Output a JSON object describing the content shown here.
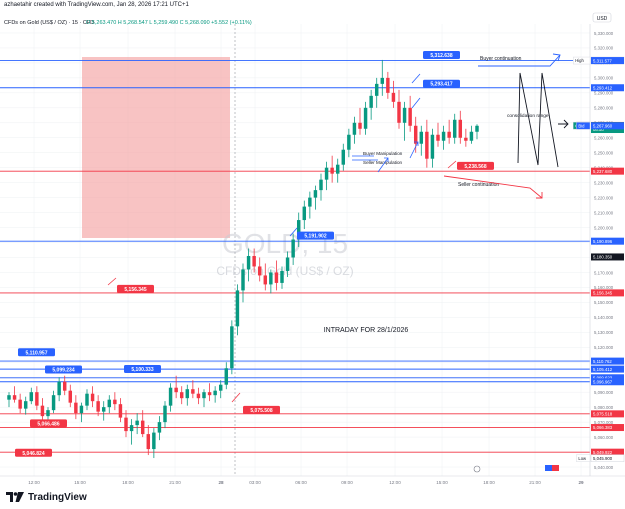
{
  "header": {
    "credit": "azhaetahir created with TradingView.com, Jan 28, 2026 17:21 UTC+1",
    "currency_button": "USD"
  },
  "legend": {
    "symbol": "CFDs on Gold (US$ / OZ) · 15 · CFD",
    "ohlc": "O 5,263.470  H 5,268.547  L 5,259.490  C 5,268.090  +5.552 (+0.11%)"
  },
  "watermark": {
    "big": "GOLD, 15",
    "small": "CFDs on Gold (US$ / OZ)"
  },
  "footer": {
    "brand": "TradingView"
  },
  "colors": {
    "up": "#089981",
    "down": "#f23645",
    "blue_line": "#2962ff",
    "red_line": "#f23645",
    "zone": "#f5a3a3"
  },
  "chart_data": {
    "type": "candlestick",
    "title": "INTRADAY FOR 28/1/2026",
    "ylim": [
      5034,
      5336
    ],
    "x_ticks": [
      "12:00",
      "15:00",
      "18:00",
      "21:00",
      "28",
      "03:00",
      "06:00",
      "09:00",
      "12:00",
      "15:00",
      "18:00",
      "21:00",
      "29"
    ],
    "y_ticks": [
      5040,
      5050,
      5060,
      5070,
      5080,
      5090,
      5100,
      5110,
      5120,
      5130,
      5140,
      5150,
      5160,
      5170,
      5180,
      5190,
      5200,
      5210,
      5220,
      5230,
      5240,
      5250,
      5260,
      5270,
      5280,
      5290,
      5300,
      5310,
      5320,
      5330
    ],
    "level_labels": [
      {
        "text": "5,312.638",
        "color": "blue"
      },
      {
        "text": "5,293.417",
        "color": "blue"
      },
      {
        "text": "5,238.568",
        "color": "red"
      },
      {
        "text": "5,191.902",
        "color": "blue"
      },
      {
        "text": "5,156.345",
        "color": "red"
      },
      {
        "text": "5,110.957",
        "color": "blue"
      },
      {
        "text": "5,099.234",
        "color": "blue"
      },
      {
        "text": "5,100.333",
        "color": "blue"
      },
      {
        "text": "5,075.508",
        "color": "red"
      },
      {
        "text": "5,066.486",
        "color": "red"
      },
      {
        "text": "5,046.824",
        "color": "red"
      }
    ],
    "annotations": [
      "Buyer continuation",
      "consolidation range",
      "Buyer Manipulation",
      "Seller Manipulation",
      "Seller continuation"
    ],
    "price_axis_tags": [
      {
        "text": "High",
        "value": 5311.58,
        "label": "5,311.580",
        "kind": "hl"
      },
      {
        "text": "",
        "value": 5311.577,
        "label": "5,311.577",
        "kind": "blue"
      },
      {
        "text": "",
        "value": 5293.412,
        "label": "5,293.412",
        "kind": "blue"
      },
      {
        "text": "Ask",
        "value": 5268.22,
        "label": "5,268.220",
        "kind": "red"
      },
      {
        "text": "GOLD",
        "value": 5268.09,
        "label": "5,268.090",
        "kind": "green"
      },
      {
        "text": "",
        "value": 5265.5,
        "label": "08:50",
        "kind": "green"
      },
      {
        "text": "Bid",
        "value": 5267.96,
        "label": "5,267.960",
        "kind": "blue"
      },
      {
        "text": "",
        "value": 5237.68,
        "label": "5,237.680",
        "kind": "red"
      },
      {
        "text": "",
        "value": 5190.896,
        "label": "5,190.896",
        "kind": "blue"
      },
      {
        "text": "",
        "value": 5180.35,
        "label": "5,180.350",
        "kind": "dark"
      },
      {
        "text": "",
        "value": 5156.345,
        "label": "5,156.345",
        "kind": "red"
      },
      {
        "text": "",
        "value": 5110.762,
        "label": "5,110.762",
        "kind": "blue"
      },
      {
        "text": "",
        "value": 5105.412,
        "label": "5,105.412",
        "kind": "blue"
      },
      {
        "text": "",
        "value": 5099.623,
        "label": "5,099.623",
        "kind": "blue"
      },
      {
        "text": "",
        "value": 5096.967,
        "label": "5,096.967",
        "kind": "blue"
      },
      {
        "text": "",
        "value": 5075.518,
        "label": "5,075.518",
        "kind": "red"
      },
      {
        "text": "",
        "value": 5066.383,
        "label": "5,066.383",
        "kind": "red"
      },
      {
        "text": "",
        "value": 5049.922,
        "label": "5,049.922",
        "kind": "red"
      },
      {
        "text": "Low",
        "value": 5045.9,
        "label": "5,045.900",
        "kind": "hl"
      }
    ],
    "candles": [
      [
        5085,
        5090,
        5080,
        5088
      ],
      [
        5088,
        5094,
        5083,
        5085
      ],
      [
        5085,
        5089,
        5076,
        5079
      ],
      [
        5079,
        5087,
        5075,
        5084
      ],
      [
        5084,
        5093,
        5082,
        5090
      ],
      [
        5090,
        5094,
        5078,
        5081
      ],
      [
        5081,
        5086,
        5070,
        5074
      ],
      [
        5074,
        5080,
        5068,
        5078
      ],
      [
        5078,
        5091,
        5076,
        5088
      ],
      [
        5088,
        5100,
        5084,
        5097
      ],
      [
        5097,
        5101,
        5088,
        5091
      ],
      [
        5091,
        5095,
        5080,
        5083
      ],
      [
        5083,
        5088,
        5072,
        5076
      ],
      [
        5076,
        5083,
        5070,
        5081
      ],
      [
        5081,
        5092,
        5078,
        5089
      ],
      [
        5089,
        5094,
        5080,
        5084
      ],
      [
        5084,
        5088,
        5074,
        5077
      ],
      [
        5077,
        5084,
        5071,
        5080
      ],
      [
        5080,
        5088,
        5076,
        5085
      ],
      [
        5085,
        5090,
        5078,
        5082
      ],
      [
        5082,
        5086,
        5070,
        5073
      ],
      [
        5073,
        5078,
        5060,
        5064
      ],
      [
        5064,
        5072,
        5055,
        5068
      ],
      [
        5068,
        5076,
        5062,
        5071
      ],
      [
        5071,
        5078,
        5060,
        5062
      ],
      [
        5062,
        5068,
        5048,
        5052
      ],
      [
        5052,
        5066,
        5046,
        5063
      ],
      [
        5063,
        5074,
        5058,
        5070
      ],
      [
        5070,
        5084,
        5066,
        5081
      ],
      [
        5081,
        5096,
        5077,
        5093
      ],
      [
        5093,
        5101,
        5086,
        5090
      ],
      [
        5090,
        5094,
        5082,
        5086
      ],
      [
        5086,
        5095,
        5081,
        5092
      ],
      [
        5092,
        5098,
        5086,
        5089
      ],
      [
        5089,
        5093,
        5082,
        5086
      ],
      [
        5086,
        5092,
        5080,
        5090
      ],
      [
        5090,
        5096,
        5084,
        5088
      ],
      [
        5088,
        5094,
        5083,
        5091
      ],
      [
        5091,
        5098,
        5086,
        5095
      ],
      [
        5095,
        5110,
        5092,
        5106
      ],
      [
        5106,
        5138,
        5102,
        5134
      ],
      [
        5134,
        5162,
        5128,
        5158
      ],
      [
        5158,
        5176,
        5150,
        5172
      ],
      [
        5172,
        5186,
        5164,
        5181
      ],
      [
        5181,
        5186,
        5170,
        5174
      ],
      [
        5174,
        5180,
        5164,
        5168
      ],
      [
        5168,
        5176,
        5158,
        5162
      ],
      [
        5162,
        5172,
        5156,
        5170
      ],
      [
        5170,
        5178,
        5158,
        5163
      ],
      [
        5163,
        5174,
        5159,
        5171
      ],
      [
        5171,
        5184,
        5167,
        5180
      ],
      [
        5180,
        5196,
        5175,
        5192
      ],
      [
        5192,
        5210,
        5187,
        5205
      ],
      [
        5205,
        5218,
        5199,
        5214
      ],
      [
        5214,
        5224,
        5206,
        5220
      ],
      [
        5220,
        5228,
        5212,
        5225
      ],
      [
        5225,
        5236,
        5218,
        5232
      ],
      [
        5232,
        5244,
        5225,
        5240
      ],
      [
        5240,
        5248,
        5230,
        5236
      ],
      [
        5236,
        5246,
        5230,
        5242
      ],
      [
        5242,
        5256,
        5238,
        5252
      ],
      [
        5252,
        5266,
        5247,
        5262
      ],
      [
        5262,
        5274,
        5256,
        5270
      ],
      [
        5270,
        5280,
        5262,
        5266
      ],
      [
        5266,
        5284,
        5262,
        5280
      ],
      [
        5280,
        5292,
        5272,
        5288
      ],
      [
        5288,
        5300,
        5280,
        5296
      ],
      [
        5296,
        5312,
        5288,
        5300
      ],
      [
        5300,
        5304,
        5286,
        5290
      ],
      [
        5290,
        5298,
        5280,
        5284
      ],
      [
        5284,
        5292,
        5266,
        5270
      ],
      [
        5270,
        5284,
        5258,
        5280
      ],
      [
        5280,
        5288,
        5264,
        5268
      ],
      [
        5268,
        5274,
        5250,
        5256
      ],
      [
        5256,
        5268,
        5248,
        5264
      ],
      [
        5264,
        5272,
        5240,
        5246
      ],
      [
        5246,
        5266,
        5240,
        5262
      ],
      [
        5262,
        5270,
        5254,
        5258
      ],
      [
        5258,
        5268,
        5252,
        5264
      ],
      [
        5264,
        5272,
        5256,
        5260
      ],
      [
        5260,
        5276,
        5256,
        5272
      ],
      [
        5272,
        5278,
        5256,
        5260
      ],
      [
        5260,
        5266,
        5254,
        5258
      ],
      [
        5258,
        5268,
        5256,
        5264
      ],
      [
        5264,
        5269,
        5259,
        5268
      ]
    ]
  }
}
